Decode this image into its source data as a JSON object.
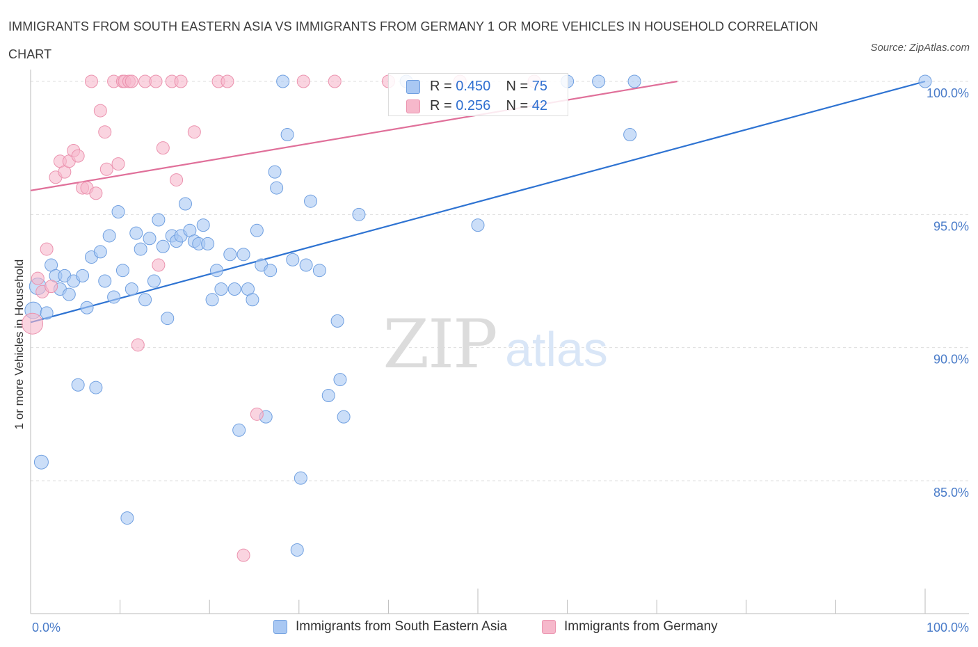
{
  "title": "IMMIGRANTS FROM SOUTH EASTERN ASIA VS IMMIGRANTS FROM GERMANY 1 OR MORE VEHICLES IN HOUSEHOLD CORRELATION CHART",
  "source": "Source: ZipAtlas.com",
  "watermark": {
    "zip": "ZIP",
    "atlas": "atlas"
  },
  "colors": {
    "blue_fill": "#a9c8f3",
    "blue_stroke": "#6f9fe0",
    "blue_line": "#2e73d2",
    "pink_fill": "#f6b8cb",
    "pink_stroke": "#eb92ae",
    "pink_line": "#e0709a",
    "tick_text": "#4a7cc9",
    "grid": "#dddddd"
  },
  "legend_top": {
    "rows": [
      {
        "r_label": "R =",
        "r_value": "0.450",
        "n_label": "N =",
        "n_value": "75",
        "series": "blue"
      },
      {
        "r_label": "R =",
        "r_value": "0.256",
        "n_label": "N =",
        "n_value": "42",
        "series": "pink"
      }
    ]
  },
  "legend_bottom": [
    {
      "label": "Immigrants from South Eastern Asia",
      "series": "blue"
    },
    {
      "label": "Immigrants from Germany",
      "series": "pink"
    }
  ],
  "chart_data": {
    "type": "scatter",
    "title": "IMMIGRANTS FROM SOUTH EASTERN ASIA VS IMMIGRANTS FROM GERMANY 1 OR MORE VEHICLES IN HOUSEHOLD CORRELATION CHART",
    "xlabel": "",
    "ylabel": "1 or more Vehicles in Household",
    "xlim": [
      0,
      100
    ],
    "ylim": [
      80,
      100
    ],
    "x_tick_labels": [
      "0.0%",
      "100.0%"
    ],
    "y_ticks": [
      85,
      90,
      95,
      100
    ],
    "y_tick_labels": [
      "85.0%",
      "90.0%",
      "95.0%",
      "100.0%"
    ],
    "grid": true,
    "legend_placement": "bottom",
    "series": [
      {
        "name": "Immigrants from South Eastern Asia",
        "color": "#a9c8f3",
        "trend": {
          "x": [
            0,
            100
          ],
          "y": [
            90.95,
            100.0
          ]
        },
        "points": [
          [
            0.3,
            91.4,
            12
          ],
          [
            0.8,
            92.3,
            12
          ],
          [
            1.2,
            85.7,
            10
          ],
          [
            1.8,
            91.3,
            9
          ],
          [
            2.3,
            93.1,
            9
          ],
          [
            2.8,
            92.7,
            9
          ],
          [
            3.3,
            92.2,
            9
          ],
          [
            3.8,
            92.7,
            9
          ],
          [
            4.3,
            92.0,
            9
          ],
          [
            4.8,
            92.5,
            9
          ],
          [
            5.3,
            88.6,
            9
          ],
          [
            5.8,
            92.7,
            9
          ],
          [
            6.3,
            91.5,
            9
          ],
          [
            6.8,
            93.4,
            9
          ],
          [
            7.3,
            88.5,
            9
          ],
          [
            7.8,
            93.6,
            9
          ],
          [
            8.3,
            92.5,
            9
          ],
          [
            8.8,
            94.2,
            9
          ],
          [
            9.3,
            91.9,
            9
          ],
          [
            9.8,
            95.1,
            9
          ],
          [
            10.3,
            92.9,
            9
          ],
          [
            10.8,
            83.6,
            9
          ],
          [
            11.3,
            92.2,
            9
          ],
          [
            11.8,
            94.3,
            9
          ],
          [
            12.3,
            93.7,
            9
          ],
          [
            12.8,
            91.8,
            9
          ],
          [
            13.3,
            94.1,
            9
          ],
          [
            13.8,
            92.5,
            9
          ],
          [
            14.3,
            94.8,
            9
          ],
          [
            14.8,
            93.8,
            9
          ],
          [
            15.3,
            91.1,
            9
          ],
          [
            15.8,
            94.2,
            9
          ],
          [
            16.3,
            94.0,
            9
          ],
          [
            16.8,
            94.2,
            9
          ],
          [
            17.3,
            95.4,
            9
          ],
          [
            17.8,
            94.4,
            9
          ],
          [
            18.3,
            94.0,
            9
          ],
          [
            18.8,
            93.9,
            9
          ],
          [
            19.3,
            94.6,
            9
          ],
          [
            19.8,
            93.9,
            9
          ],
          [
            20.3,
            91.8,
            9
          ],
          [
            20.8,
            92.9,
            9
          ],
          [
            21.3,
            92.2,
            9
          ],
          [
            22.3,
            93.5,
            9
          ],
          [
            22.8,
            92.2,
            9
          ],
          [
            23.3,
            86.9,
            9
          ],
          [
            23.8,
            93.5,
            9
          ],
          [
            24.3,
            92.2,
            9
          ],
          [
            24.8,
            91.8,
            9
          ],
          [
            25.3,
            94.4,
            9
          ],
          [
            25.8,
            93.1,
            9
          ],
          [
            26.3,
            87.4,
            9
          ],
          [
            26.8,
            92.9,
            9
          ],
          [
            27.3,
            96.6,
            9
          ],
          [
            27.5,
            96.0,
            9
          ],
          [
            28.2,
            100.0,
            9
          ],
          [
            28.7,
            98.0,
            9
          ],
          [
            29.3,
            93.3,
            9
          ],
          [
            29.8,
            82.4,
            9
          ],
          [
            30.2,
            85.1,
            9
          ],
          [
            30.8,
            93.1,
            9
          ],
          [
            31.3,
            95.5,
            9
          ],
          [
            32.3,
            92.9,
            9
          ],
          [
            34.3,
            91.0,
            9
          ],
          [
            34.6,
            88.8,
            9
          ],
          [
            33.3,
            88.2,
            9
          ],
          [
            35.0,
            87.4,
            9
          ],
          [
            36.7,
            95.0,
            9
          ],
          [
            42.0,
            100.0,
            9
          ],
          [
            50.0,
            94.6,
            9
          ],
          [
            60.0,
            100.0,
            9
          ],
          [
            63.5,
            100.0,
            9
          ],
          [
            67.0,
            98.0,
            9
          ],
          [
            67.5,
            100.0,
            9
          ],
          [
            100.0,
            100.0,
            9
          ]
        ]
      },
      {
        "name": "Immigrants from Germany",
        "color": "#f6b8cb",
        "trend": {
          "x": [
            0,
            72.3
          ],
          "y": [
            95.9,
            100.0
          ]
        },
        "points": [
          [
            0.2,
            90.9,
            15
          ],
          [
            0.8,
            92.6,
            9
          ],
          [
            1.3,
            92.1,
            9
          ],
          [
            1.8,
            93.7,
            9
          ],
          [
            2.3,
            92.3,
            9
          ],
          [
            2.8,
            96.4,
            9
          ],
          [
            3.3,
            97.0,
            9
          ],
          [
            3.8,
            96.6,
            9
          ],
          [
            4.3,
            97.0,
            9
          ],
          [
            4.8,
            97.4,
            9
          ],
          [
            5.3,
            97.2,
            9
          ],
          [
            5.8,
            96.0,
            9
          ],
          [
            6.3,
            96.0,
            9
          ],
          [
            6.8,
            100.0,
            9
          ],
          [
            7.3,
            95.8,
            9
          ],
          [
            7.8,
            98.9,
            9
          ],
          [
            8.3,
            98.1,
            9
          ],
          [
            8.5,
            96.7,
            9
          ],
          [
            9.3,
            100.0,
            9
          ],
          [
            9.8,
            96.9,
            9
          ],
          [
            10.3,
            100.0,
            9
          ],
          [
            10.5,
            100.0,
            9
          ],
          [
            11.0,
            100.0,
            9
          ],
          [
            11.3,
            100.0,
            9
          ],
          [
            12.0,
            90.1,
            9
          ],
          [
            12.8,
            100.0,
            9
          ],
          [
            14.0,
            100.0,
            9
          ],
          [
            14.3,
            93.1,
            9
          ],
          [
            14.8,
            97.5,
            9
          ],
          [
            15.8,
            100.0,
            9
          ],
          [
            16.3,
            96.3,
            9
          ],
          [
            16.8,
            100.0,
            9
          ],
          [
            18.3,
            98.1,
            9
          ],
          [
            21.0,
            100.0,
            9
          ],
          [
            22.0,
            100.0,
            9
          ],
          [
            23.8,
            82.2,
            9
          ],
          [
            25.3,
            87.5,
            9
          ],
          [
            30.5,
            100.0,
            9
          ],
          [
            34.0,
            100.0,
            9
          ],
          [
            40.0,
            100.0,
            9
          ],
          [
            48.0,
            100.0,
            9
          ],
          [
            56.3,
            100.0,
            9
          ]
        ]
      }
    ]
  }
}
